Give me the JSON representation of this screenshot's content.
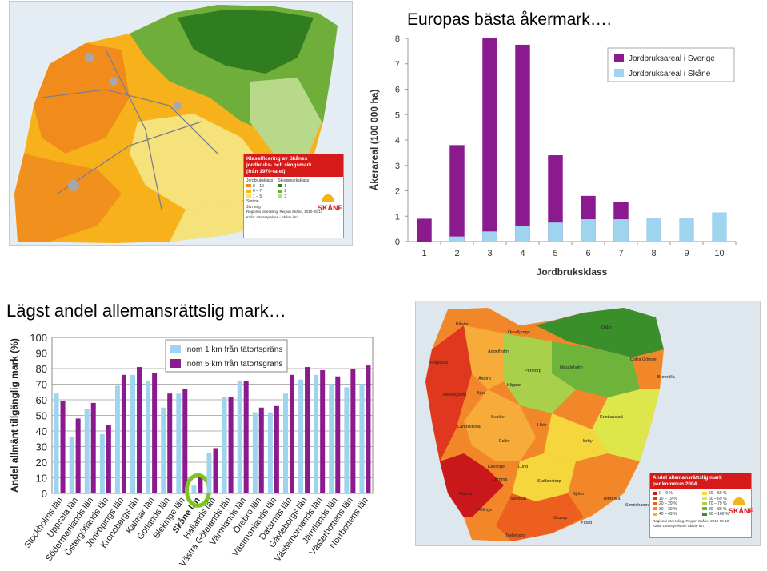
{
  "title_top": "Europas bästa åkermark….",
  "title_bottom": "Lägst andel allemansrättslig mark…",
  "map_top": {
    "legend_title": "Klassificering av Skånes\njordbruks- och skogsmark\n(från 1970-talet)",
    "jord_label": "Jordbruksklass",
    "skog_label": "Skogsmarksklass",
    "jord_items": [
      "8 – 10",
      "6 – 7",
      "1 – 5"
    ],
    "skog_items": [
      "1",
      "2",
      "3"
    ],
    "other_items": [
      "Station",
      "Järnväg"
    ],
    "footer": "Regional utveckling, Region Skåne, 2010-05-14\nKälla: Länsstyrelsen i Skåne län",
    "logo": "SKÅNE",
    "colors": {
      "jord_8_10": "#f08a1c",
      "jord_6_7": "#f7b21b",
      "jord_1_5": "#f6e27a",
      "skog_1": "#2f7d1f",
      "skog_2": "#6fae3a",
      "skog_3": "#b8d88a"
    }
  },
  "map_bottom": {
    "legend_title": "Andel allemansrättslig mark\nper kommun 2004",
    "legend_items": [
      "0 – 9 %",
      "10 – 19 %",
      "20 – 29 %",
      "30 – 39 %",
      "40 – 49 %",
      "50 – 59 %",
      "60 – 69 %",
      "70 – 79 %",
      "80 – 89 %",
      "90 – 100 %"
    ],
    "legend_colors": [
      "#c9171b",
      "#e0381e",
      "#ec5f1f",
      "#f2872a",
      "#f7ac3a",
      "#f5d63d",
      "#dde64a",
      "#a8d04a",
      "#6fb43a",
      "#3a8f2a"
    ],
    "footer": "Regional utveckling, Region Skåne, 2010-05-10\nKälla: Länsstyrelsen i Skåne län",
    "logo": "SKÅNE",
    "places": [
      "Båstad",
      "Örkelljunga",
      "Osby",
      "Ängelholm",
      "Höganäs",
      "Perstorp",
      "Hässleholm",
      "Östra Göinge",
      "Bromölla",
      "Klippan",
      "Åstorp",
      "Bjuv",
      "Helsingborg",
      "Kristianstad",
      "Svalöv",
      "Landskrona",
      "Höör",
      "Eslöv",
      "Hörby",
      "Kävlinge",
      "Lund",
      "Lomma",
      "Staffanstorp",
      "Malmö",
      "Sjöbo",
      "Tomelilla",
      "Svedala",
      "Simrishamn",
      "Vellinge",
      "Skurup",
      "Ystad",
      "Trelleborg"
    ]
  },
  "chart_data": [
    {
      "type": "bar",
      "title": "",
      "xlabel": "Jordbruksklass",
      "ylabel": "Åkerareal (100 000 ha)",
      "categories": [
        "1",
        "2",
        "3",
        "4",
        "5",
        "6",
        "7",
        "8",
        "9",
        "10"
      ],
      "ylim": [
        0,
        8
      ],
      "yticks": [
        0,
        1,
        2,
        3,
        4,
        5,
        6,
        7,
        8
      ],
      "grid": false,
      "legend_position": "top-right",
      "overlay": true,
      "series": [
        {
          "name": "Jordbruksareal i Sverige",
          "color": "#8b1a8f",
          "values": [
            0.9,
            3.8,
            8.0,
            7.75,
            3.4,
            1.8,
            1.55,
            0,
            0,
            0
          ]
        },
        {
          "name": "Jordbruksareal i Skåne",
          "color": "#9fd4ee",
          "values": [
            0,
            0.2,
            0.4,
            0.6,
            0.75,
            0.88,
            0.88,
            0.92,
            0.92,
            1.15
          ]
        }
      ]
    },
    {
      "type": "bar",
      "title": "",
      "xlabel": "",
      "ylabel": "Andel allmänt tillgänglig mark (%)",
      "categories": [
        "Stockholms län",
        "Uppsala län",
        "Södermanlands län",
        "Östergötlands län",
        "Jönköpings län",
        "Kronobergs län",
        "Kalmar län",
        "Gotlands län",
        "Blekinge län",
        "Skåne län",
        "Hallands län",
        "Västra Götalands län",
        "Värmlands län",
        "Örebro län",
        "Västmanlands län",
        "Dalarnas län",
        "Gävleborgs län",
        "Västernorrlands län",
        "Jämtlands län",
        "Västerbottens län",
        "Norrbottens län"
      ],
      "ylim": [
        0,
        100
      ],
      "yticks": [
        0,
        10,
        20,
        30,
        40,
        50,
        60,
        70,
        80,
        90,
        100
      ],
      "grid": true,
      "legend_position": "top-right",
      "highlight_category": "Skåne län",
      "series": [
        {
          "name": "Inom 1 km från tätortsgräns",
          "color": "#9fd4ee",
          "values": [
            64,
            36,
            54,
            38,
            69,
            76,
            72,
            55,
            64,
            5,
            26,
            62,
            72,
            52,
            52,
            64,
            73,
            76,
            70,
            68,
            70
          ]
        },
        {
          "name": "Inom 5 km från tätortsgräns",
          "color": "#8b1a8f",
          "values": [
            59,
            48,
            58,
            44,
            76,
            81,
            77,
            64,
            67,
            12,
            29,
            62,
            72,
            55,
            56,
            76,
            81,
            79,
            75,
            80,
            82
          ]
        }
      ]
    }
  ]
}
